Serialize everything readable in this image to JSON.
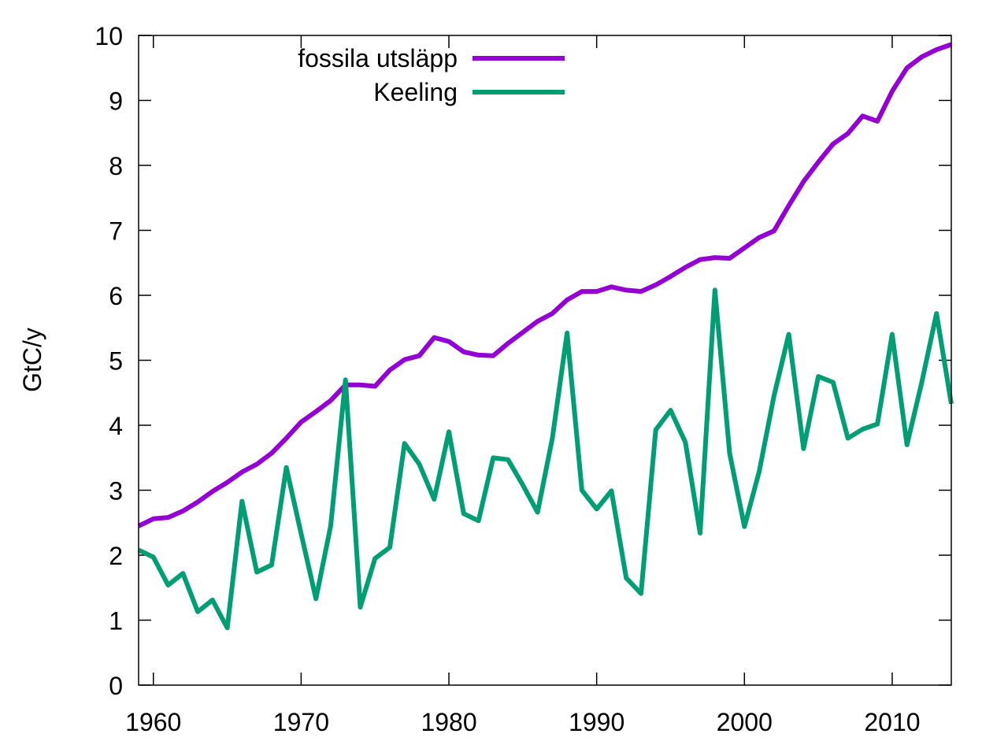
{
  "chart_data": {
    "type": "line",
    "title": "",
    "xlabel": "",
    "ylabel": "GtC/y",
    "xlim": [
      1959,
      2014
    ],
    "ylim": [
      0,
      10
    ],
    "x_ticks": [
      1960,
      1970,
      1980,
      1990,
      2000,
      2010
    ],
    "y_ticks": [
      0,
      1,
      2,
      3,
      4,
      5,
      6,
      7,
      8,
      9,
      10
    ],
    "grid": false,
    "legend_position": "top-left",
    "x": [
      1959,
      1960,
      1961,
      1962,
      1963,
      1964,
      1965,
      1966,
      1967,
      1968,
      1969,
      1970,
      1971,
      1972,
      1973,
      1974,
      1975,
      1976,
      1977,
      1978,
      1979,
      1980,
      1981,
      1982,
      1983,
      1984,
      1985,
      1986,
      1987,
      1988,
      1989,
      1990,
      1991,
      1992,
      1993,
      1994,
      1995,
      1996,
      1997,
      1998,
      1999,
      2000,
      2001,
      2002,
      2003,
      2004,
      2005,
      2006,
      2007,
      2008,
      2009,
      2010,
      2011,
      2012,
      2013,
      2014
    ],
    "series": [
      {
        "name": "fossila utsläpp",
        "color": "#9400d3",
        "values": [
          2.45,
          2.56,
          2.58,
          2.68,
          2.82,
          2.98,
          3.12,
          3.28,
          3.4,
          3.57,
          3.8,
          4.05,
          4.21,
          4.38,
          4.62,
          4.62,
          4.6,
          4.85,
          5.01,
          5.07,
          5.35,
          5.29,
          5.13,
          5.08,
          5.07,
          5.26,
          5.43,
          5.6,
          5.72,
          5.93,
          6.06,
          6.06,
          6.13,
          6.08,
          6.06,
          6.16,
          6.29,
          6.43,
          6.55,
          6.58,
          6.57,
          6.73,
          6.89,
          6.99,
          7.38,
          7.75,
          8.05,
          8.33,
          8.49,
          8.76,
          8.68,
          9.14,
          9.5,
          9.67,
          9.78,
          9.86
        ]
      },
      {
        "name": "Keeling",
        "color": "#009e73",
        "values": [
          2.08,
          1.97,
          1.54,
          1.72,
          1.13,
          1.31,
          0.88,
          2.83,
          1.74,
          1.85,
          3.35,
          2.33,
          1.33,
          2.45,
          4.7,
          1.2,
          1.95,
          2.12,
          3.72,
          3.4,
          2.86,
          3.9,
          2.64,
          2.53,
          3.5,
          3.47,
          3.08,
          2.66,
          3.8,
          5.42,
          3.0,
          2.71,
          2.99,
          1.65,
          1.41,
          3.93,
          4.23,
          3.74,
          2.34,
          6.08,
          3.57,
          2.44,
          3.29,
          4.45,
          5.4,
          3.64,
          4.75,
          4.66,
          3.8,
          3.94,
          4.02,
          5.4,
          3.7,
          4.66,
          5.72,
          4.33
        ]
      }
    ]
  }
}
